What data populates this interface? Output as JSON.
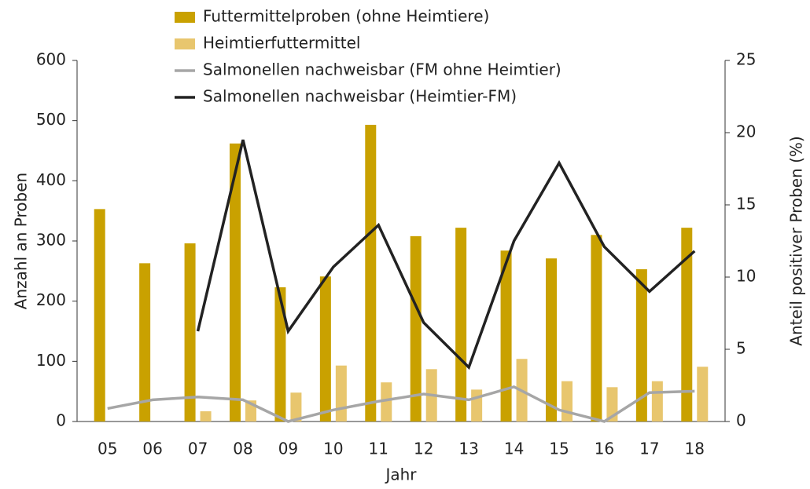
{
  "chart_data": {
    "type": "bar_line",
    "x_label": "Jahr",
    "y_label": "Anzahl an Proben",
    "y2_label": "Anteil positiver Proben (%)",
    "categories": [
      "05",
      "06",
      "07",
      "08",
      "09",
      "10",
      "11",
      "12",
      "13",
      "14",
      "15",
      "16",
      "17",
      "18"
    ],
    "series": [
      {
        "name": "Futtermittelproben (ohne Heimtiere)",
        "color": "#c9a100",
        "kind": "bar",
        "values": [
          353,
          263,
          296,
          462,
          223,
          241,
          493,
          308,
          322,
          284,
          271,
          310,
          253,
          322
        ]
      },
      {
        "name": "Heimtierfuttermittel",
        "color": "#e8c66e",
        "kind": "bar",
        "values": [
          null,
          null,
          17,
          35,
          48,
          93,
          65,
          87,
          53,
          104,
          67,
          57,
          67,
          91
        ]
      },
      {
        "name": "Salmonellen nachweisbar (FM ohne Heimtier)",
        "color": "#a6a6a6",
        "kind": "line",
        "axis": "y2",
        "values": [
          0.9,
          1.5,
          1.7,
          1.5,
          0,
          0.8,
          1.4,
          1.9,
          1.5,
          2.4,
          0.8,
          0,
          2.0,
          2.1
        ]
      },
      {
        "name": "Salmonellen nachweisbar (Heimtier-FM)",
        "color": "#222222",
        "kind": "line",
        "axis": "y2",
        "values": [
          null,
          null,
          6.25,
          19.5,
          6.25,
          10.7,
          13.6,
          6.85,
          3.75,
          12.5,
          17.9,
          12.1,
          9.0,
          11.8
        ]
      }
    ],
    "ylim": [
      0,
      600
    ],
    "yticks": [
      0,
      100,
      200,
      300,
      400,
      500,
      600
    ],
    "y2lim": [
      0,
      25
    ],
    "y2ticks": [
      0,
      5,
      10,
      15,
      20,
      25
    ],
    "grid": false,
    "legend": "top"
  }
}
